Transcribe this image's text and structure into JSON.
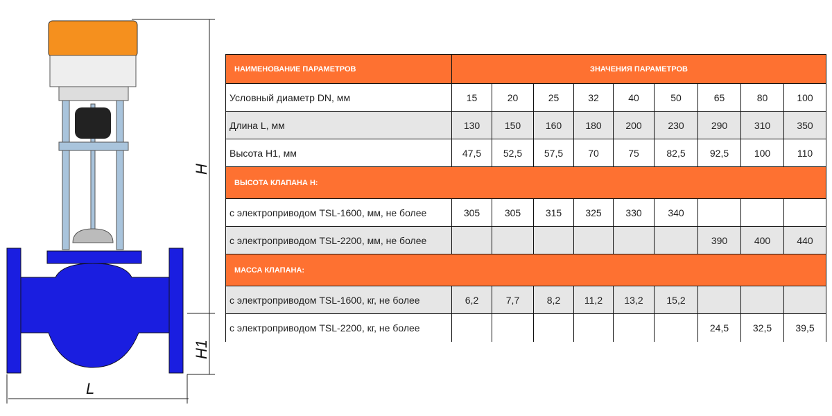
{
  "drawing": {
    "dim_H": "H",
    "dim_H1": "H1",
    "dim_L": "L",
    "colors": {
      "body": "#1a1ee0",
      "actuator": "#f5901e",
      "stem": "#a9c4dc"
    }
  },
  "table": {
    "header": {
      "name": "НАИМЕНОВАНИЕ ПАРАМЕТРОВ",
      "values": "ЗНАЧЕНИЯ ПАРАМЕТРОВ"
    },
    "rows1": [
      {
        "label": "Условный диаметр DN, мм",
        "values": [
          "15",
          "20",
          "25",
          "32",
          "40",
          "50",
          "65",
          "80",
          "100"
        ]
      },
      {
        "label": "Длина L, мм",
        "values": [
          "130",
          "150",
          "160",
          "180",
          "200",
          "230",
          "290",
          "310",
          "350"
        ]
      },
      {
        "label": "Высота H1, мм",
        "values": [
          "47,5",
          "52,5",
          "57,5",
          "70",
          "75",
          "82,5",
          "92,5",
          "100",
          "110"
        ]
      }
    ],
    "section_height": "ВЫСОТА КЛАПАНА H:",
    "rows2": [
      {
        "label": "с электроприводом TSL-1600, мм, не более",
        "values": [
          "305",
          "305",
          "315",
          "325",
          "330",
          "340",
          "",
          "",
          ""
        ]
      },
      {
        "label": "с электроприводом TSL-2200, мм, не более",
        "values": [
          "",
          "",
          "",
          "",
          "",
          "",
          "390",
          "400",
          "440"
        ]
      }
    ],
    "section_mass": "МАССА КЛАПАНА:",
    "rows3": [
      {
        "label": "с электроприводом TSL-1600, кг, не более",
        "values": [
          "6,2",
          "7,7",
          "8,2",
          "11,2",
          "13,2",
          "15,2",
          "",
          "",
          ""
        ]
      },
      {
        "label": "с электроприводом TSL-2200, кг, не более",
        "values": [
          "",
          "",
          "",
          "",
          "",
          "",
          "24,5",
          "32,5",
          "39,5"
        ]
      }
    ],
    "colors": {
      "band": "#fe7131",
      "stripe": "#e6e6e6"
    }
  }
}
